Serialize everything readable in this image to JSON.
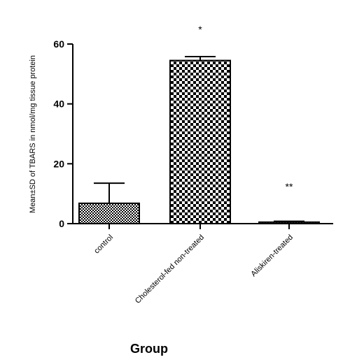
{
  "chart_data": {
    "type": "bar",
    "title": "",
    "xlabel": "Group",
    "ylabel": "Mean±SD of TBARS in nmol/mg tissue protein",
    "categories": [
      "control",
      "Cholesterol-fed non-treated",
      "Aliskiren-treated"
    ],
    "values": [
      6.8,
      54.5,
      0.5
    ],
    "errors": [
      6.7,
      1.3,
      0.3
    ],
    "significance": [
      "",
      "*",
      "**"
    ],
    "ylim": [
      0,
      60
    ],
    "yticks": [
      0,
      20,
      40,
      60
    ],
    "grid": false,
    "legend": "none"
  }
}
